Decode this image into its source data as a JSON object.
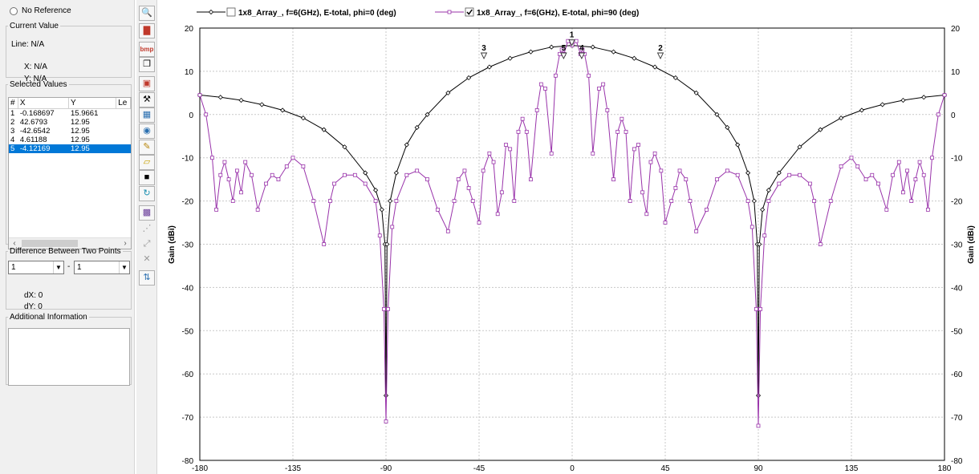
{
  "left_panel": {
    "no_reference": "No Reference",
    "current_value": {
      "title": "Current Value",
      "line": "Line: N/A",
      "x": "X: N/A",
      "y": "Y: N/A"
    },
    "selected_values": {
      "title": "Selected Values",
      "columns": [
        "#",
        "X",
        "Y",
        "Le"
      ],
      "rows": [
        {
          "n": "1",
          "x": "-0.168697",
          "y": "15.9661"
        },
        {
          "n": "2",
          "x": "42.6793",
          "y": "12.95"
        },
        {
          "n": "3",
          "x": "-42.6542",
          "y": "12.95"
        },
        {
          "n": "4",
          "x": "4.61188",
          "y": "12.95"
        },
        {
          "n": "5",
          "x": "-4.12169",
          "y": "12.95"
        }
      ],
      "selected_row": 4
    },
    "difference": {
      "title": "Difference Between Two Points",
      "point_a": "1",
      "separator": "-",
      "point_b": "1",
      "dx": "dX: 0",
      "dy": "dY: 0"
    },
    "additional_info": {
      "title": "Additional Information"
    }
  },
  "toolbar": {
    "icons": [
      "zoom-icon",
      "chart-settings-icon",
      "export-bmp-icon",
      "copy-icon",
      "marker-icon",
      "tools-icon",
      "table-icon",
      "eye-icon",
      "pen-icon",
      "open-folder-icon",
      "save-icon",
      "refresh-icon",
      "grid-image-icon",
      "connect-points-icon",
      "fit-icon",
      "delete-icon",
      "update-icon"
    ],
    "bmp_label": "bmp"
  },
  "chart_data": {
    "type": "line",
    "xlim": [
      -180,
      180
    ],
    "ylim": [
      -80,
      20
    ],
    "xticks": [
      -180,
      -135,
      -90,
      -45,
      0,
      45,
      90,
      135,
      180
    ],
    "yticks": [
      20,
      10,
      0,
      -10,
      -20,
      -30,
      -40,
      -50,
      -60,
      -70,
      -80
    ],
    "ylabel_left": "Gain (dBi)",
    "ylabel_right": "Gain (dBi)",
    "grid": true,
    "legend_position": "top",
    "series": [
      {
        "name": "1x8_Array_, f=6(GHz), E-total, phi=0 (deg)",
        "checked": false,
        "color": "#000000",
        "marker": "diamond",
        "x": [
          -180,
          -170,
          -160,
          -150,
          -140,
          -130,
          -120,
          -110,
          -100,
          -95,
          -92,
          -90.5,
          -90,
          -89.5,
          -88,
          -85,
          -80,
          -75,
          -70,
          -60,
          -50,
          -40,
          -30,
          -20,
          -10,
          0,
          10,
          20,
          30,
          40,
          50,
          60,
          70,
          75,
          80,
          85,
          88,
          89.5,
          90,
          90.5,
          92,
          95,
          100,
          110,
          120,
          130,
          140,
          150,
          160,
          170,
          180
        ],
        "y": [
          4.5,
          4,
          3.3,
          2.3,
          1,
          -0.8,
          -3.5,
          -7.5,
          -13.5,
          -17.5,
          -22,
          -30,
          -65,
          -30,
          -20,
          -13.5,
          -7,
          -3,
          0,
          5,
          8.5,
          11,
          13,
          14.5,
          15.6,
          16,
          15.6,
          14.5,
          13,
          11,
          8.5,
          5,
          0,
          -3,
          -7,
          -13.5,
          -20,
          -30,
          -65,
          -30,
          -22,
          -17.5,
          -13.5,
          -7.5,
          -3.5,
          -0.8,
          1,
          2.3,
          3.3,
          4,
          4.5
        ]
      },
      {
        "name": "1x8_Array_, f=6(GHz), E-total, phi=90 (deg)",
        "checked": true,
        "color": "#9933aa",
        "marker": "square",
        "x": [
          -180,
          -177,
          -174,
          -172,
          -170,
          -168,
          -166,
          -164,
          -162,
          -160,
          -158,
          -155,
          -152,
          -148,
          -145,
          -142,
          -138,
          -135,
          -130,
          -125,
          -120,
          -117,
          -115,
          -110,
          -105,
          -100,
          -95,
          -93,
          -91,
          -90,
          -89,
          -87,
          -85,
          -80,
          -75,
          -70,
          -65,
          -60,
          -57,
          -55,
          -52,
          -50,
          -48,
          -45,
          -43,
          -40,
          -38,
          -36,
          -34,
          -32,
          -30,
          -28,
          -26,
          -24,
          -22,
          -20,
          -17,
          -15,
          -13,
          -10,
          -8,
          -6,
          -5,
          -4,
          -2,
          0,
          2,
          4,
          5,
          6,
          8,
          10,
          13,
          15,
          17,
          20,
          22,
          24,
          26,
          28,
          30,
          32,
          34,
          36,
          38,
          40,
          43,
          45,
          48,
          50,
          52,
          55,
          57,
          60,
          65,
          70,
          75,
          80,
          85,
          87,
          89,
          90,
          91,
          93,
          95,
          100,
          105,
          110,
          115,
          117,
          120,
          125,
          130,
          135,
          138,
          142,
          145,
          148,
          152,
          155,
          158,
          160,
          162,
          164,
          166,
          168,
          170,
          172,
          174,
          177,
          180
        ],
        "y": [
          4.5,
          0,
          -10,
          -22,
          -14,
          -11,
          -15,
          -20,
          -13,
          -18,
          -11,
          -14,
          -22,
          -16,
          -14,
          -15,
          -12,
          -10,
          -12,
          -20,
          -30,
          -20,
          -16,
          -14,
          -14,
          -16,
          -20,
          -28,
          -45,
          -71,
          -45,
          -26,
          -20,
          -14,
          -13,
          -15,
          -22,
          -27,
          -20,
          -15,
          -13,
          -17,
          -20,
          -25,
          -13,
          -9,
          -11,
          -23,
          -18,
          -7,
          -8,
          -20,
          -4,
          -1,
          -4,
          -15,
          1,
          7,
          6,
          -9,
          9,
          14,
          15,
          14,
          17,
          16,
          17,
          14,
          15,
          14,
          9,
          -9,
          6,
          7,
          1,
          -15,
          -4,
          -1,
          -4,
          -20,
          -8,
          -7,
          -18,
          -23,
          -11,
          -9,
          -13,
          -25,
          -20,
          -17,
          -13,
          -15,
          -20,
          -27,
          -22,
          -15,
          -13,
          -14,
          -20,
          -26,
          -45,
          -72,
          -45,
          -28,
          -20,
          -16,
          -14,
          -14,
          -16,
          -20,
          -30,
          -20,
          -12,
          -10,
          -12,
          -15,
          -14,
          -16,
          -22,
          -14,
          -11,
          -18,
          -13,
          -20,
          -15,
          -11,
          -14,
          -22,
          -10,
          0,
          4.5
        ]
      }
    ],
    "markers": [
      {
        "label": "1",
        "x": -0.168697,
        "y": 15.9661
      },
      {
        "label": "2",
        "x": 42.6793,
        "y": 12.95
      },
      {
        "label": "3",
        "x": -42.6542,
        "y": 12.95
      },
      {
        "label": "4",
        "x": 4.61188,
        "y": 12.95
      },
      {
        "label": "5",
        "x": -4.12169,
        "y": 12.95
      }
    ]
  }
}
